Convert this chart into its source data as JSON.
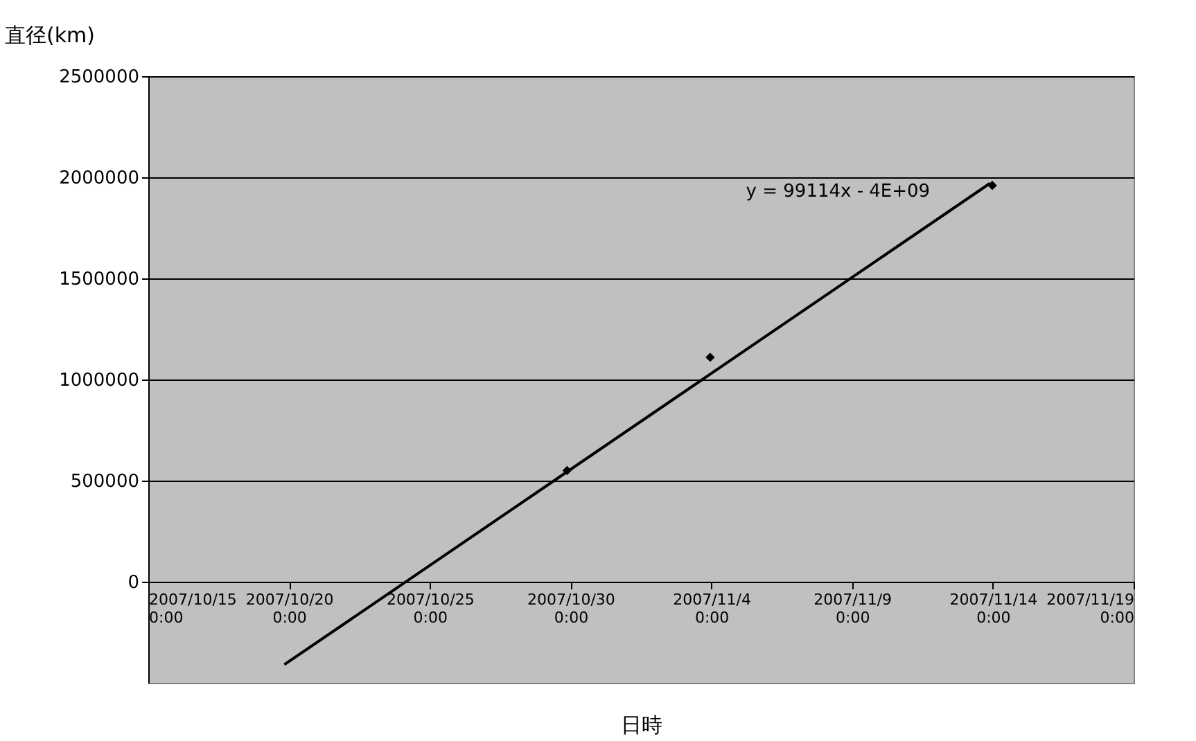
{
  "chart_data": {
    "type": "scatter",
    "xlabel": "日時",
    "ylabel": "直径(km)",
    "series": [
      {
        "type": "scatter",
        "color": "#000000",
        "marker": "diamond",
        "x": [
          "2007-10-29T21:00",
          "2007-11-03T23:00",
          "2007-11-13T23:30"
        ],
        "values": [
          550000,
          1110000,
          1960000
        ]
      },
      {
        "type": "line",
        "color": "#000000",
        "marker": "none",
        "line_style": "solid",
        "x": [
          "2007-10-19T20:00",
          "2007-11-13T21:30"
        ],
        "values": [
          -410000,
          1970000
        ]
      }
    ],
    "annotations": [
      "y = 99114x - 4E+09"
    ],
    "xlim": [
      "2007-10-15",
      "2007-11-19"
    ],
    "xticks": [
      {
        "value": "2007-10-15",
        "label": "2007/10/15 0:00"
      },
      {
        "value": "2007-10-20",
        "label": "2007/10/20 0:00"
      },
      {
        "value": "2007-10-25",
        "label": "2007/10/25 0:00"
      },
      {
        "value": "2007-10-30",
        "label": "2007/10/30 0:00"
      },
      {
        "value": "2007-11-04",
        "label": "2007/11/4 0:00"
      },
      {
        "value": "2007-11-09",
        "label": "2007/11/9 0:00"
      },
      {
        "value": "2007-11-14",
        "label": "2007/11/14 0:00"
      },
      {
        "value": "2007-11-19",
        "label": "2007/11/19 0:00"
      }
    ],
    "ylim": [
      -500000,
      2500000
    ],
    "yticks": [
      0,
      500000,
      1000000,
      1500000,
      2000000,
      2500000
    ],
    "grid": "y",
    "legend": false
  }
}
